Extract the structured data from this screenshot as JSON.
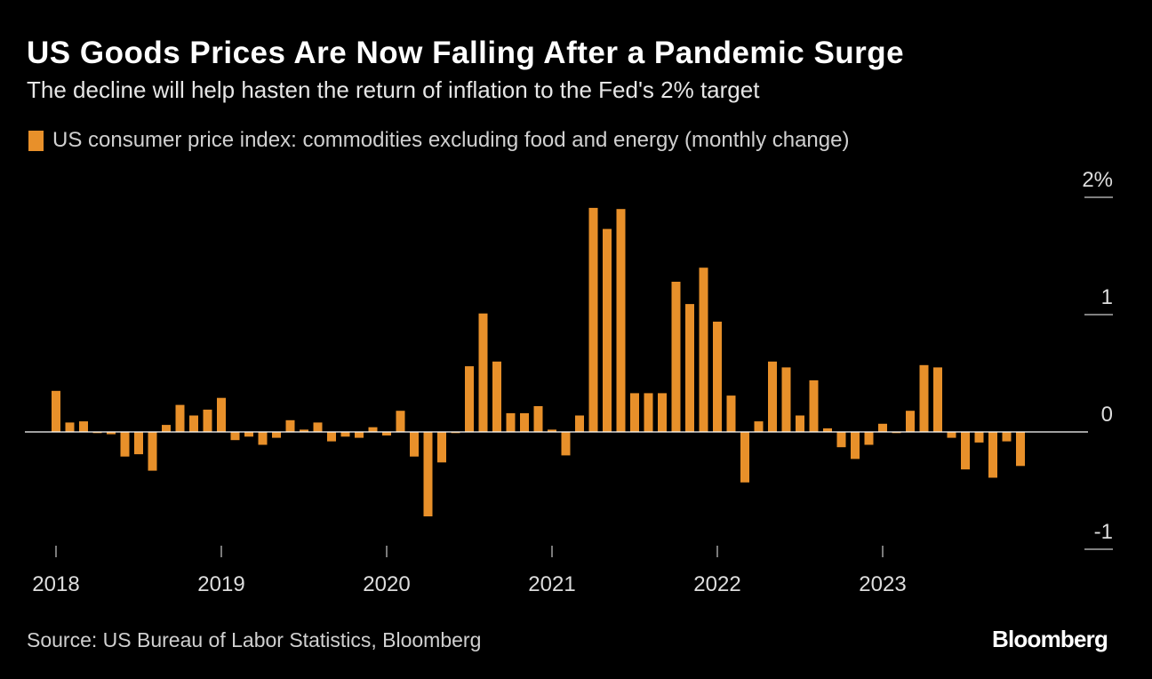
{
  "title": "US Goods Prices Are Now Falling After a Pandemic Surge",
  "subtitle": "The decline will help hasten the return of inflation to the Fed's 2% target",
  "source": "Source: US Bureau of Labor Statistics, Bloomberg",
  "brand": "Bloomberg",
  "colors": {
    "bar": "#E8902A",
    "background": "#000000",
    "text": "#FFFFFF",
    "axis": "#CCCCCC"
  },
  "chart_data": {
    "type": "bar",
    "title": "US Goods Prices Are Now Falling After a Pandemic Surge",
    "xlabel": "",
    "ylabel": "",
    "ylim": [
      -1,
      2
    ],
    "y_ticks": [
      2,
      1,
      0,
      -1
    ],
    "y_tick_labels": [
      "2%",
      "1",
      "0",
      "-1"
    ],
    "x_tick_labels": [
      "2018",
      "2019",
      "2020",
      "2021",
      "2022",
      "2023"
    ],
    "start": "2018-01",
    "legend": "US consumer price index: commodities excluding food and energy (monthly change)",
    "series": [
      {
        "name": "US consumer price index: commodities excluding food and energy (monthly change)",
        "values": [
          0.35,
          0.08,
          0.09,
          -0.01,
          -0.02,
          -0.21,
          -0.19,
          -0.33,
          0.06,
          0.23,
          0.14,
          0.19,
          0.29,
          -0.07,
          -0.04,
          -0.11,
          -0.05,
          0.1,
          0.02,
          0.08,
          -0.08,
          -0.04,
          -0.05,
          0.04,
          -0.03,
          0.18,
          -0.21,
          -0.72,
          -0.26,
          -0.01,
          0.56,
          1.01,
          0.6,
          0.16,
          0.16,
          0.22,
          0.02,
          -0.2,
          0.14,
          1.91,
          1.73,
          1.9,
          0.33,
          0.33,
          0.33,
          1.28,
          1.09,
          1.4,
          0.94,
          0.31,
          -0.43,
          0.09,
          0.6,
          0.55,
          0.14,
          0.44,
          0.03,
          -0.13,
          -0.23,
          -0.11,
          0.07,
          -0.01,
          0.18,
          0.57,
          0.55,
          -0.05,
          -0.32,
          -0.09,
          -0.39,
          -0.08,
          -0.29
        ]
      }
    ]
  }
}
